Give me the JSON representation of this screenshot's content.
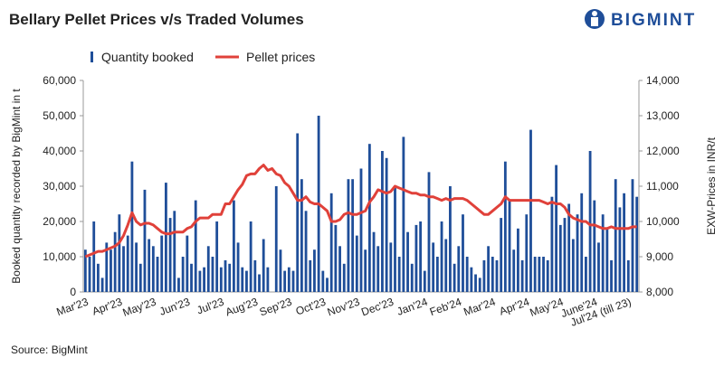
{
  "chart_data": {
    "type": "bar_line",
    "title": "Bellary Pellet Prices v/s Traded Volumes",
    "brand": "BIGMINT",
    "source": "Source: BigMint",
    "ylabel": "Booked quantity recorded by BigMint in t",
    "y2label": "EXW-Prices in INR/t",
    "categories": [
      "Mar'23",
      null,
      null,
      null,
      null,
      null,
      null,
      null,
      "Apr'23",
      null,
      null,
      null,
      null,
      null,
      null,
      null,
      "May'23",
      null,
      null,
      null,
      null,
      null,
      null,
      null,
      "Jun'23",
      null,
      null,
      null,
      null,
      null,
      null,
      null,
      "Jul'23",
      null,
      null,
      null,
      null,
      null,
      null,
      null,
      "Aug'23",
      null,
      null,
      null,
      null,
      null,
      null,
      null,
      "Sep'23",
      null,
      null,
      null,
      null,
      null,
      null,
      null,
      "Oct'23",
      null,
      null,
      null,
      null,
      null,
      null,
      null,
      "Nov'23",
      null,
      null,
      null,
      null,
      null,
      null,
      null,
      "Dec'23",
      null,
      null,
      null,
      null,
      null,
      null,
      null,
      "Jan'24",
      null,
      null,
      null,
      null,
      null,
      null,
      null,
      "Feb'24",
      null,
      null,
      null,
      null,
      null,
      null,
      null,
      "Mar'24",
      null,
      null,
      null,
      null,
      null,
      null,
      null,
      "Apr'24",
      null,
      null,
      null,
      null,
      null,
      null,
      null,
      "May'24",
      null,
      null,
      null,
      null,
      null,
      null,
      null,
      "June'24",
      null,
      null,
      null,
      null,
      null,
      null,
      null,
      "Jul'24 (till 23)",
      null,
      null
    ],
    "series": [
      {
        "name": "Quantity booked",
        "color": "#1f4e99",
        "type": "bar",
        "values": [
          12000,
          10000,
          20000,
          8000,
          4000,
          14000,
          12000,
          17000,
          22000,
          13000,
          16000,
          37000,
          14000,
          8000,
          29000,
          15000,
          13000,
          10000,
          16000,
          31000,
          21000,
          23000,
          4000,
          10000,
          16000,
          8000,
          26000,
          6000,
          7000,
          13000,
          10000,
          20000,
          7000,
          9000,
          8000,
          26000,
          14000,
          7000,
          6000,
          20000,
          9000,
          5000,
          15000,
          7000,
          0,
          30000,
          12000,
          6000,
          7000,
          6000,
          45000,
          32000,
          23000,
          9000,
          12000,
          50000,
          6000,
          4000,
          28000,
          19000,
          13000,
          8000,
          32000,
          32000,
          16000,
          35000,
          12000,
          42000,
          17000,
          13000,
          40000,
          38000,
          14000,
          30000,
          10000,
          44000,
          17000,
          8000,
          19000,
          20000,
          6000,
          34000,
          14000,
          10000,
          20000,
          15000,
          30000,
          8000,
          13000,
          22000,
          10000,
          7000,
          5000,
          4000,
          9000,
          13000,
          10000,
          9000,
          21000,
          37000,
          26000,
          12000,
          18000,
          9000,
          22000,
          46000,
          10000,
          10000,
          10000,
          9000,
          27000,
          36000,
          19000,
          21000,
          25000,
          15000,
          22000,
          28000,
          10000,
          40000,
          26000,
          14000,
          22000,
          18000,
          9000,
          32000,
          24000,
          28000,
          9000,
          32000,
          27000
        ]
      },
      {
        "name": "Pellet prices",
        "color": "#e0413a",
        "type": "line",
        "axis": "y2",
        "values": [
          9000,
          9050,
          9100,
          9150,
          9150,
          9200,
          9250,
          9300,
          9400,
          9600,
          9900,
          10250,
          10000,
          9900,
          9950,
          9950,
          9900,
          9800,
          9700,
          9650,
          9650,
          9700,
          9700,
          9700,
          9800,
          9850,
          10000,
          10100,
          10100,
          10100,
          10200,
          10200,
          10200,
          10500,
          10500,
          10700,
          10900,
          11050,
          11300,
          11350,
          11350,
          11500,
          11600,
          11450,
          11500,
          11350,
          11300,
          11100,
          11000,
          10800,
          10600,
          10600,
          10700,
          10550,
          10500,
          10500,
          10400,
          10300,
          10000,
          10000,
          10050,
          10200,
          10250,
          10200,
          10200,
          10250,
          10300,
          10550,
          10700,
          10900,
          10850,
          10800,
          10850,
          11000,
          10950,
          10900,
          10850,
          10800,
          10800,
          10750,
          10750,
          10700,
          10700,
          10650,
          10600,
          10650,
          10600,
          10650,
          10650,
          10650,
          10600,
          10500,
          10400,
          10300,
          10200,
          10200,
          10300,
          10400,
          10500,
          10700,
          10600,
          10600,
          10600,
          10600,
          10600,
          10600,
          10600,
          10600,
          10550,
          10500,
          10550,
          10500,
          10500,
          10400,
          10200,
          10100,
          10050,
          10000,
          10000,
          9900,
          9900,
          9850,
          9800,
          9800,
          9850,
          9800,
          9800,
          9800,
          9800,
          9850,
          9850
        ]
      }
    ],
    "ylim": [
      0,
      60000
    ],
    "yticks": [
      0,
      {
        "value": 10000,
        "label": "10,000"
      },
      {
        "value": 20000,
        "label": "20,000"
      },
      {
        "value": 30000,
        "label": "30,000"
      },
      {
        "value": 40000,
        "label": "40,000"
      },
      {
        "value": 50000,
        "label": "50,000"
      },
      {
        "value": 60000,
        "label": "60,000"
      }
    ],
    "y2lim": [
      8000,
      14000
    ],
    "y2ticks": [
      {
        "value": 8000,
        "label": "8,000"
      },
      {
        "value": 9000,
        "label": "9,000"
      },
      {
        "value": 10000,
        "label": "10,000"
      },
      {
        "value": 11000,
        "label": "11,000"
      },
      {
        "value": 12000,
        "label": "12,000"
      },
      {
        "value": 13000,
        "label": "13,000"
      },
      {
        "value": 14000,
        "label": "14,000"
      }
    ]
  }
}
